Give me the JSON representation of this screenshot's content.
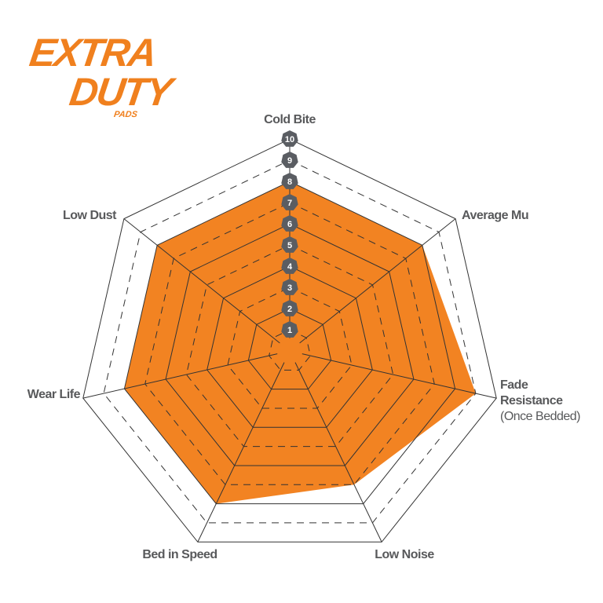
{
  "logo": {
    "line1": "EXTRA",
    "line2": "DUTY",
    "line3": "PADS"
  },
  "chart_data": {
    "type": "radar",
    "categories": [
      "Cold Bite",
      "Average Mu",
      "Fade Resistance (Once Bedded)",
      "Low Noise",
      "Bed in Speed",
      "Wear Life",
      "Low Dust"
    ],
    "label_lines": [
      [
        "Cold Bite"
      ],
      [
        "Average Mu"
      ],
      [
        "Fade",
        "Resistance",
        "(Once Bedded)"
      ],
      [
        "Low Noise"
      ],
      [
        "Bed in Speed"
      ],
      [
        "Wear Life"
      ],
      [
        "Low Dust"
      ]
    ],
    "values": [
      8,
      8,
      9,
      7,
      8,
      8,
      8
    ],
    "rlim": [
      0,
      10
    ],
    "ticks": [
      "1",
      "2",
      "3",
      "4",
      "5",
      "6",
      "7",
      "8",
      "9",
      "10"
    ],
    "fill_color": "#f28322",
    "badge_color": "#5a5d62",
    "label_color": "#58595b"
  }
}
